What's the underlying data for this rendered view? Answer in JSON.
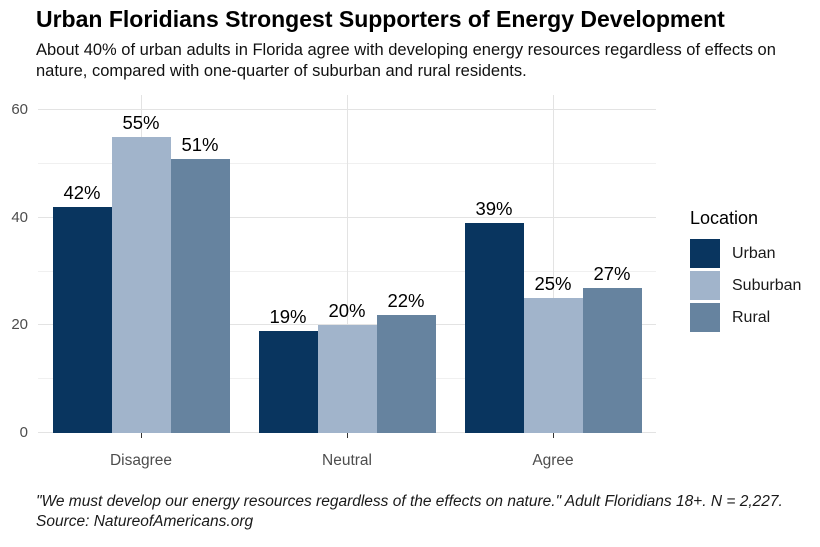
{
  "header": {
    "title": "Urban Floridians Strongest Supporters of Energy Development",
    "subtitle": "About 40% of urban adults in Florida agree with developing energy resources regardless of effects on nature, compared with one-quarter of suburban and rural residents."
  },
  "caption": "\"We must develop our energy resources regardless of the effects on nature.\" Adult Floridians 18+. N = 2,227. Source: NatureofAmericans.org",
  "chart_data": {
    "type": "bar",
    "title": "Urban Floridians Strongest Supporters of Energy Development",
    "subtitle": "About 40% of urban adults in Florida agree with developing energy resources regardless of effects on nature, compared with one-quarter of suburban and rural residents.",
    "categories": [
      "Disagree",
      "Neutral",
      "Agree"
    ],
    "series": [
      {
        "name": "Urban",
        "color": "#09355F",
        "values": [
          42,
          19,
          39
        ]
      },
      {
        "name": "Suburban",
        "color": "#A1B4CB",
        "values": [
          55,
          20,
          25
        ]
      },
      {
        "name": "Rural",
        "color": "#66839F",
        "values": [
          51,
          22,
          27
        ]
      }
    ],
    "data_label_suffix": "%",
    "xlabel": "",
    "ylabel": "",
    "ylim": [
      0,
      62.8
    ],
    "y_major_ticks": [
      0,
      20,
      40,
      60
    ],
    "y_minor_gridlines": [
      10,
      30,
      50
    ],
    "grid": "on",
    "legend": {
      "title": "Location",
      "position": "right",
      "entries": [
        "Urban",
        "Suburban",
        "Rural"
      ]
    },
    "colors": {
      "grid_major": "#e3e3e3",
      "grid_minor": "#f0f0f0",
      "axis_text": "#4d4d4d",
      "tick_mark": "#333333"
    }
  }
}
